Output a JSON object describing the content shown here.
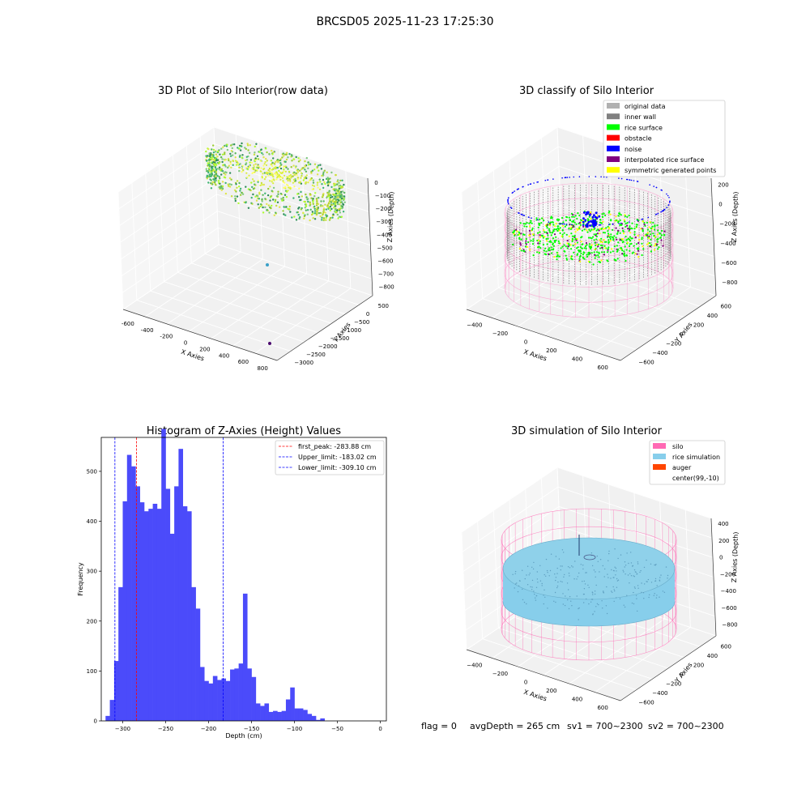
{
  "figure": {
    "suptitle": "BRCSD05 2025-11-23 17:25:30",
    "footer": {
      "flag": "flag = 0",
      "avg": "avgDepth = 265 cm",
      "sv1": "sv1 = 700~2300",
      "sv2": "sv2 = 700~2300"
    }
  },
  "colors": {
    "hist_bar": "#4b4bfa",
    "peak_line": "#ff0000",
    "limit_line": "#0000ff",
    "silo": "#ff69b4",
    "rice_sim": "#87ceeb",
    "auger": "#ff4500",
    "original": "#b0b0b0",
    "inner_wall": "#808080",
    "rice_surface": "#00ff00",
    "obstacle": "#ff0000",
    "noise": "#0000ff",
    "interp": "#800080",
    "sym": "#ffff00"
  },
  "chart_data": [
    {
      "type": "scatter",
      "title": "3D Plot of Silo Interior(row data)",
      "xlabel": "X Axies",
      "ylabel": "Y Axies",
      "zlabel": "Z Axies (Depth)",
      "xticks": [
        "-600",
        "-400",
        "-200",
        "0",
        "200",
        "400",
        "600",
        "800"
      ],
      "yticks": [
        "500",
        "0",
        "−500",
        "−1000",
        "−1500",
        "−2000",
        "−2500",
        "−3000"
      ],
      "zticks": [
        "0",
        "−100",
        "−200",
        "−300",
        "−400",
        "−500",
        "−600",
        "−700",
        "−800"
      ]
    },
    {
      "type": "scatter",
      "title": "3D classify of Silo Interior",
      "xlabel": "X Axies",
      "ylabel": "Y Axies",
      "zlabel": "Z Axies (Depth)",
      "xticks": [
        "−400",
        "−200",
        "0",
        "200",
        "400",
        "600"
      ],
      "yticks": [
        "600",
        "400",
        "200",
        "0",
        "−200",
        "−400",
        "−600"
      ],
      "zticks": [
        "200",
        "0",
        "−200",
        "−400",
        "−600",
        "−800"
      ],
      "legend": [
        {
          "name": "original data",
          "color": "#b0b0b0"
        },
        {
          "name": "inner wall",
          "color": "#808080"
        },
        {
          "name": "rice surface",
          "color": "#00ff00"
        },
        {
          "name": "obstacle",
          "color": "#ff0000"
        },
        {
          "name": "noise",
          "color": "#0000ff"
        },
        {
          "name": "interpolated rice surface",
          "color": "#800080"
        },
        {
          "name": "symmetric generated points",
          "color": "#ffff00"
        }
      ]
    },
    {
      "type": "bar",
      "title": "Histogram of Z-Axies (Height) Values",
      "xlabel": "Depth (cm)",
      "ylabel": "Frequency",
      "xlim": [
        -325,
        7
      ],
      "ylim": [
        0,
        568
      ],
      "xticks": [
        -300,
        -250,
        -200,
        -150,
        -100,
        -50,
        0
      ],
      "yticks": [
        0,
        100,
        200,
        300,
        400,
        500
      ],
      "bin_start": -320,
      "bin_width": 5,
      "values": [
        10,
        42,
        120,
        268,
        440,
        533,
        510,
        470,
        438,
        420,
        425,
        435,
        425,
        585,
        465,
        375,
        470,
        545,
        430,
        420,
        268,
        225,
        108,
        80,
        75,
        90,
        82,
        85,
        80,
        103,
        105,
        115,
        255,
        105,
        88,
        35,
        30,
        35,
        18,
        20,
        18,
        20,
        43,
        67,
        25,
        25,
        22,
        14,
        10,
        2,
        5
      ],
      "lines": [
        {
          "label": "first_peak: -283.88 cm",
          "x": -283.88,
          "color": "#ff0000"
        },
        {
          "label": "Upper_limit: -183.02 cm",
          "x": -183.02,
          "color": "#0000ff"
        },
        {
          "label": "Lower_limit: -309.10 cm",
          "x": -309.1,
          "color": "#0000ff"
        }
      ]
    },
    {
      "type": "scatter",
      "title": "3D simulation of Silo Interior",
      "xlabel": "X Axies",
      "ylabel": "Y Axies",
      "zlabel": "Z Axies (Depth)",
      "xticks": [
        "−400",
        "−200",
        "0",
        "200",
        "400",
        "600"
      ],
      "yticks": [
        "600",
        "400",
        "200",
        "0",
        "−200",
        "−400",
        "−600"
      ],
      "zticks": [
        "400",
        "200",
        "0",
        "−200",
        "−400",
        "−600",
        "−800"
      ],
      "legend": [
        {
          "name": "silo",
          "color": "#ff69b4"
        },
        {
          "name": "rice simulation",
          "color": "#87ceeb"
        },
        {
          "name": "auger",
          "color": "#ff4500"
        },
        {
          "name": "center(99,-10)",
          "color": ""
        }
      ]
    }
  ]
}
